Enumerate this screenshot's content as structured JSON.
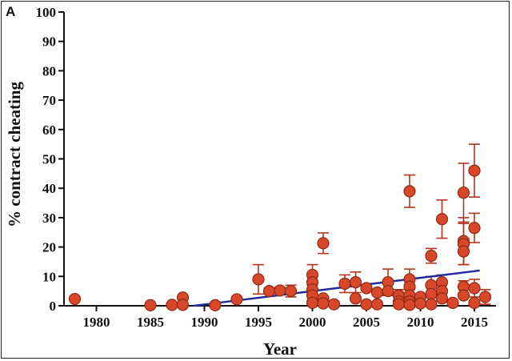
{
  "chart_data": {
    "type": "scatter",
    "panel_label": "A",
    "xlabel": "Year",
    "ylabel": "% contract cheating",
    "xlim": [
      1977,
      2017
    ],
    "ylim": [
      0,
      100
    ],
    "x_ticks": [
      1980,
      1985,
      1990,
      1995,
      2000,
      2005,
      2010,
      2015
    ],
    "y_ticks": [
      0,
      10,
      20,
      30,
      40,
      50,
      60,
      70,
      80,
      90,
      100
    ],
    "colors": {
      "point_fill": "#d9472b",
      "point_stroke": "#8e2a14",
      "errorbar": "#b3351f",
      "trend": "#1f2a9e",
      "axis": "#111111"
    },
    "trend_line": {
      "x": [
        1989,
        2015.5
      ],
      "y": [
        0,
        12
      ]
    },
    "points": [
      {
        "x": 1978,
        "y": 2.3
      },
      {
        "x": 1985,
        "y": 0.2
      },
      {
        "x": 1987,
        "y": 0.3
      },
      {
        "x": 1988,
        "y": 2.8
      },
      {
        "x": 1988,
        "y": 0.3
      },
      {
        "x": 1991,
        "y": 0.2
      },
      {
        "x": 1993,
        "y": 2.2
      },
      {
        "x": 1995,
        "y": 9.0,
        "err": 5.0
      },
      {
        "x": 1996,
        "y": 5.0,
        "err": 1.0
      },
      {
        "x": 1997,
        "y": 5.2,
        "err": 1.0
      },
      {
        "x": 1998,
        "y": 5.0,
        "err": 2.0
      },
      {
        "x": 2000,
        "y": 10.5,
        "err": 3.5
      },
      {
        "x": 2000,
        "y": 8.0,
        "err": 2.5
      },
      {
        "x": 2000,
        "y": 5.5,
        "err": 2.0
      },
      {
        "x": 2000,
        "y": 3.5,
        "err": 1.5
      },
      {
        "x": 2000,
        "y": 1.0
      },
      {
        "x": 2001,
        "y": 21.3,
        "err": 3.5
      },
      {
        "x": 2001,
        "y": 2.5
      },
      {
        "x": 2001,
        "y": 0.8
      },
      {
        "x": 2002,
        "y": 0.5,
        "err": 1.0
      },
      {
        "x": 2003,
        "y": 7.5,
        "err": 3.0
      },
      {
        "x": 2004,
        "y": 8.0,
        "err": 3.5
      },
      {
        "x": 2004,
        "y": 2.5
      },
      {
        "x": 2005,
        "y": 6.0
      },
      {
        "x": 2005,
        "y": 0.5
      },
      {
        "x": 2006,
        "y": 4.5
      },
      {
        "x": 2006,
        "y": 0.5
      },
      {
        "x": 2007,
        "y": 8.0,
        "err": 4.5
      },
      {
        "x": 2007,
        "y": 5.0
      },
      {
        "x": 2008,
        "y": 3.5,
        "err": 2.0
      },
      {
        "x": 2008,
        "y": 1.5
      },
      {
        "x": 2008,
        "y": 0.5
      },
      {
        "x": 2009,
        "y": 39.0,
        "err": 5.5
      },
      {
        "x": 2009,
        "y": 9.0,
        "err": 3.5
      },
      {
        "x": 2009,
        "y": 6.5
      },
      {
        "x": 2009,
        "y": 3.5
      },
      {
        "x": 2009,
        "y": 1.5
      },
      {
        "x": 2009,
        "y": 0.3
      },
      {
        "x": 2010,
        "y": 3.0
      },
      {
        "x": 2010,
        "y": 0.8
      },
      {
        "x": 2011,
        "y": 17.0,
        "err": 2.5
      },
      {
        "x": 2011,
        "y": 7.0,
        "err": 3.0
      },
      {
        "x": 2011,
        "y": 4.0
      },
      {
        "x": 2011,
        "y": 0.5
      },
      {
        "x": 2012,
        "y": 29.5,
        "err": 6.5
      },
      {
        "x": 2012,
        "y": 8.0,
        "err": 2.5
      },
      {
        "x": 2012,
        "y": 5.0
      },
      {
        "x": 2012,
        "y": 2.5
      },
      {
        "x": 2013,
        "y": 1.0
      },
      {
        "x": 2014,
        "y": 38.5,
        "err": 10.0
      },
      {
        "x": 2014,
        "y": 22.0,
        "err": 8.0
      },
      {
        "x": 2014,
        "y": 21.0,
        "err": 7.0
      },
      {
        "x": 2014,
        "y": 18.5,
        "err": 4.5
      },
      {
        "x": 2014,
        "y": 6.5,
        "err": 2.0
      },
      {
        "x": 2014,
        "y": 3.5
      },
      {
        "x": 2015,
        "y": 46.0,
        "err": 9.0
      },
      {
        "x": 2015,
        "y": 26.5,
        "err": 5.0
      },
      {
        "x": 2015,
        "y": 6.0,
        "err": 3.0
      },
      {
        "x": 2015,
        "y": 1.0
      },
      {
        "x": 2016,
        "y": 3.0,
        "err": 2.5
      }
    ]
  }
}
